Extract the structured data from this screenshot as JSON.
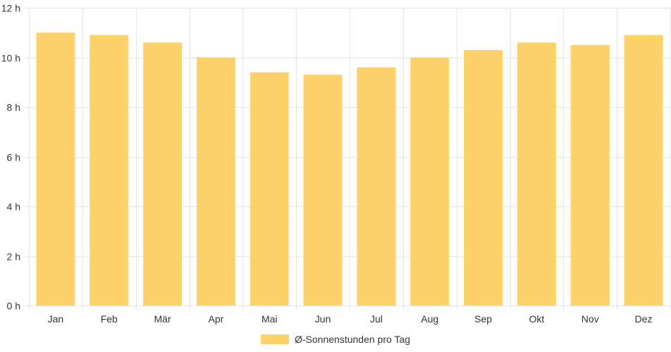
{
  "chart_data": {
    "type": "bar",
    "categories": [
      "Jan",
      "Feb",
      "Mär",
      "Apr",
      "Mai",
      "Jun",
      "Jul",
      "Aug",
      "Sep",
      "Okt",
      "Nov",
      "Dez"
    ],
    "series": [
      {
        "name": "Ø-Sonnenstunden pro Tag",
        "values": [
          11.0,
          10.9,
          10.6,
          10.0,
          9.4,
          9.3,
          9.6,
          10.0,
          10.3,
          10.6,
          10.5,
          10.9
        ]
      }
    ],
    "ylim": [
      0,
      12
    ],
    "yticks": [
      0,
      2,
      4,
      6,
      8,
      10,
      12
    ],
    "ytick_labels": [
      "0 h",
      "2 h",
      "4 h",
      "6 h",
      "8 h",
      "10 h",
      "12 h"
    ],
    "grid": true,
    "legend_position": "bottom",
    "bar_color": "#fdd26a",
    "grid_color": "#e6e6e6"
  }
}
